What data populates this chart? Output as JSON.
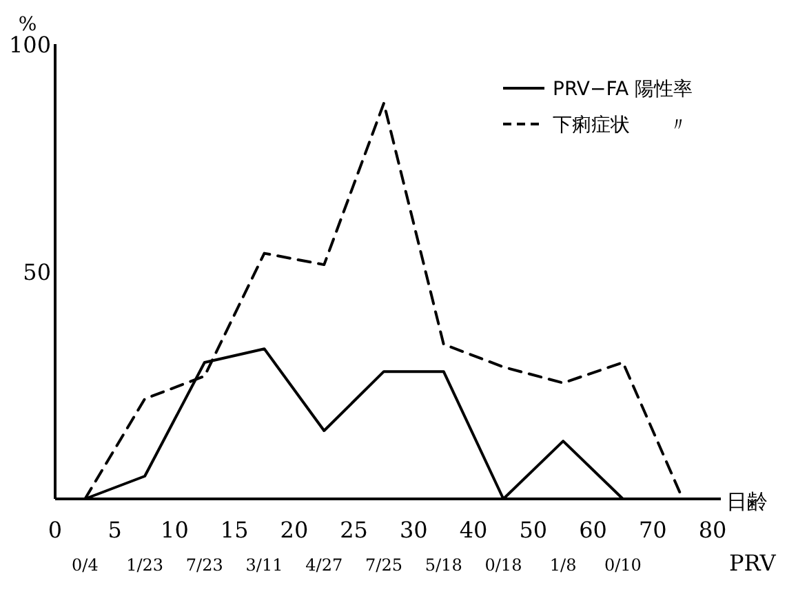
{
  "chart_data": {
    "type": "line",
    "xlabel": "日齢",
    "ylabel": "%",
    "categories": [
      "0/4",
      "1/23",
      "7/23",
      "3/11",
      "4/27",
      "7/25",
      "5/18",
      "0/18",
      "1/8",
      "0/10",
      null
    ],
    "ylim": [
      0,
      100
    ],
    "yticks": [
      50,
      100
    ],
    "legend": "top right",
    "grid": false,
    "marker": "none",
    "series": [
      {
        "name": "PRV−FA 陽性率",
        "color": "#000000",
        "line_style": "solid",
        "values": [
          0,
          5,
          30,
          33,
          15,
          28,
          28,
          0,
          12.7,
          0,
          null
        ]
      },
      {
        "name": "下痢症状　　〃",
        "color": "#000000",
        "line_style": "dashed",
        "values": [
          0,
          22,
          27,
          54,
          51.5,
          87,
          34,
          29,
          25.5,
          30,
          0
        ]
      }
    ],
    "annotations": [
      "0",
      "5",
      "10",
      "15",
      "20",
      "25",
      "30",
      "40",
      "50",
      "60",
      "70",
      "80",
      "PRV"
    ]
  }
}
